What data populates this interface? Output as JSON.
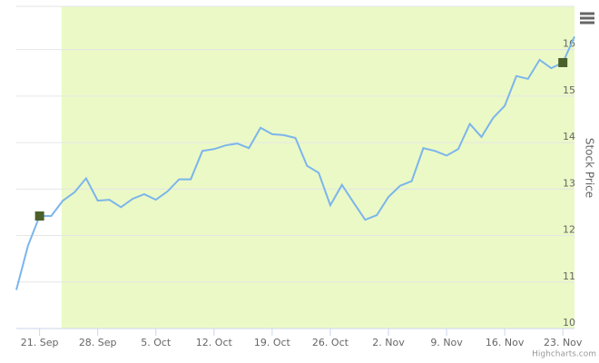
{
  "chart_data": {
    "type": "line",
    "categories": [
      null,
      null,
      "21. Sep",
      null,
      null,
      null,
      null,
      "28. Sep",
      null,
      null,
      null,
      null,
      "5. Oct",
      null,
      null,
      null,
      null,
      "12. Oct",
      null,
      null,
      null,
      null,
      "19. Oct",
      null,
      null,
      null,
      null,
      "26. Oct",
      null,
      null,
      null,
      null,
      "2. Nov",
      null,
      null,
      null,
      null,
      "9. Nov",
      null,
      null,
      null,
      null,
      "16. Nov",
      null,
      null,
      null,
      null,
      "23. Nov",
      null
    ],
    "series": [
      {
        "name": "Stock Price",
        "color": "#7cb5ec",
        "values": [
          10.83,
          11.78,
          12.42,
          12.42,
          12.75,
          12.93,
          13.23,
          12.75,
          12.77,
          12.61,
          12.79,
          12.89,
          12.77,
          12.95,
          13.21,
          13.21,
          13.82,
          13.86,
          13.94,
          13.98,
          13.88,
          14.32,
          14.18,
          14.16,
          14.1,
          13.5,
          13.35,
          12.65,
          13.09,
          12.71,
          12.34,
          12.44,
          12.83,
          13.07,
          13.17,
          13.88,
          13.82,
          13.72,
          13.86,
          14.4,
          14.12,
          14.53,
          14.79,
          15.43,
          15.37,
          15.78,
          15.6,
          15.72,
          16.28
        ]
      }
    ],
    "marker_indices": [
      2,
      47
    ],
    "marker_color": "#4a5f2a",
    "plot_band": {
      "from": 3.9,
      "to": 48,
      "color": "#ebf9c6"
    },
    "y_label": "Stock Price",
    "ylim": [
      10,
      16.93
    ],
    "yticks": [
      10,
      11,
      12,
      13,
      14,
      15,
      16
    ],
    "grid": true,
    "credits": "Highcharts.com"
  }
}
